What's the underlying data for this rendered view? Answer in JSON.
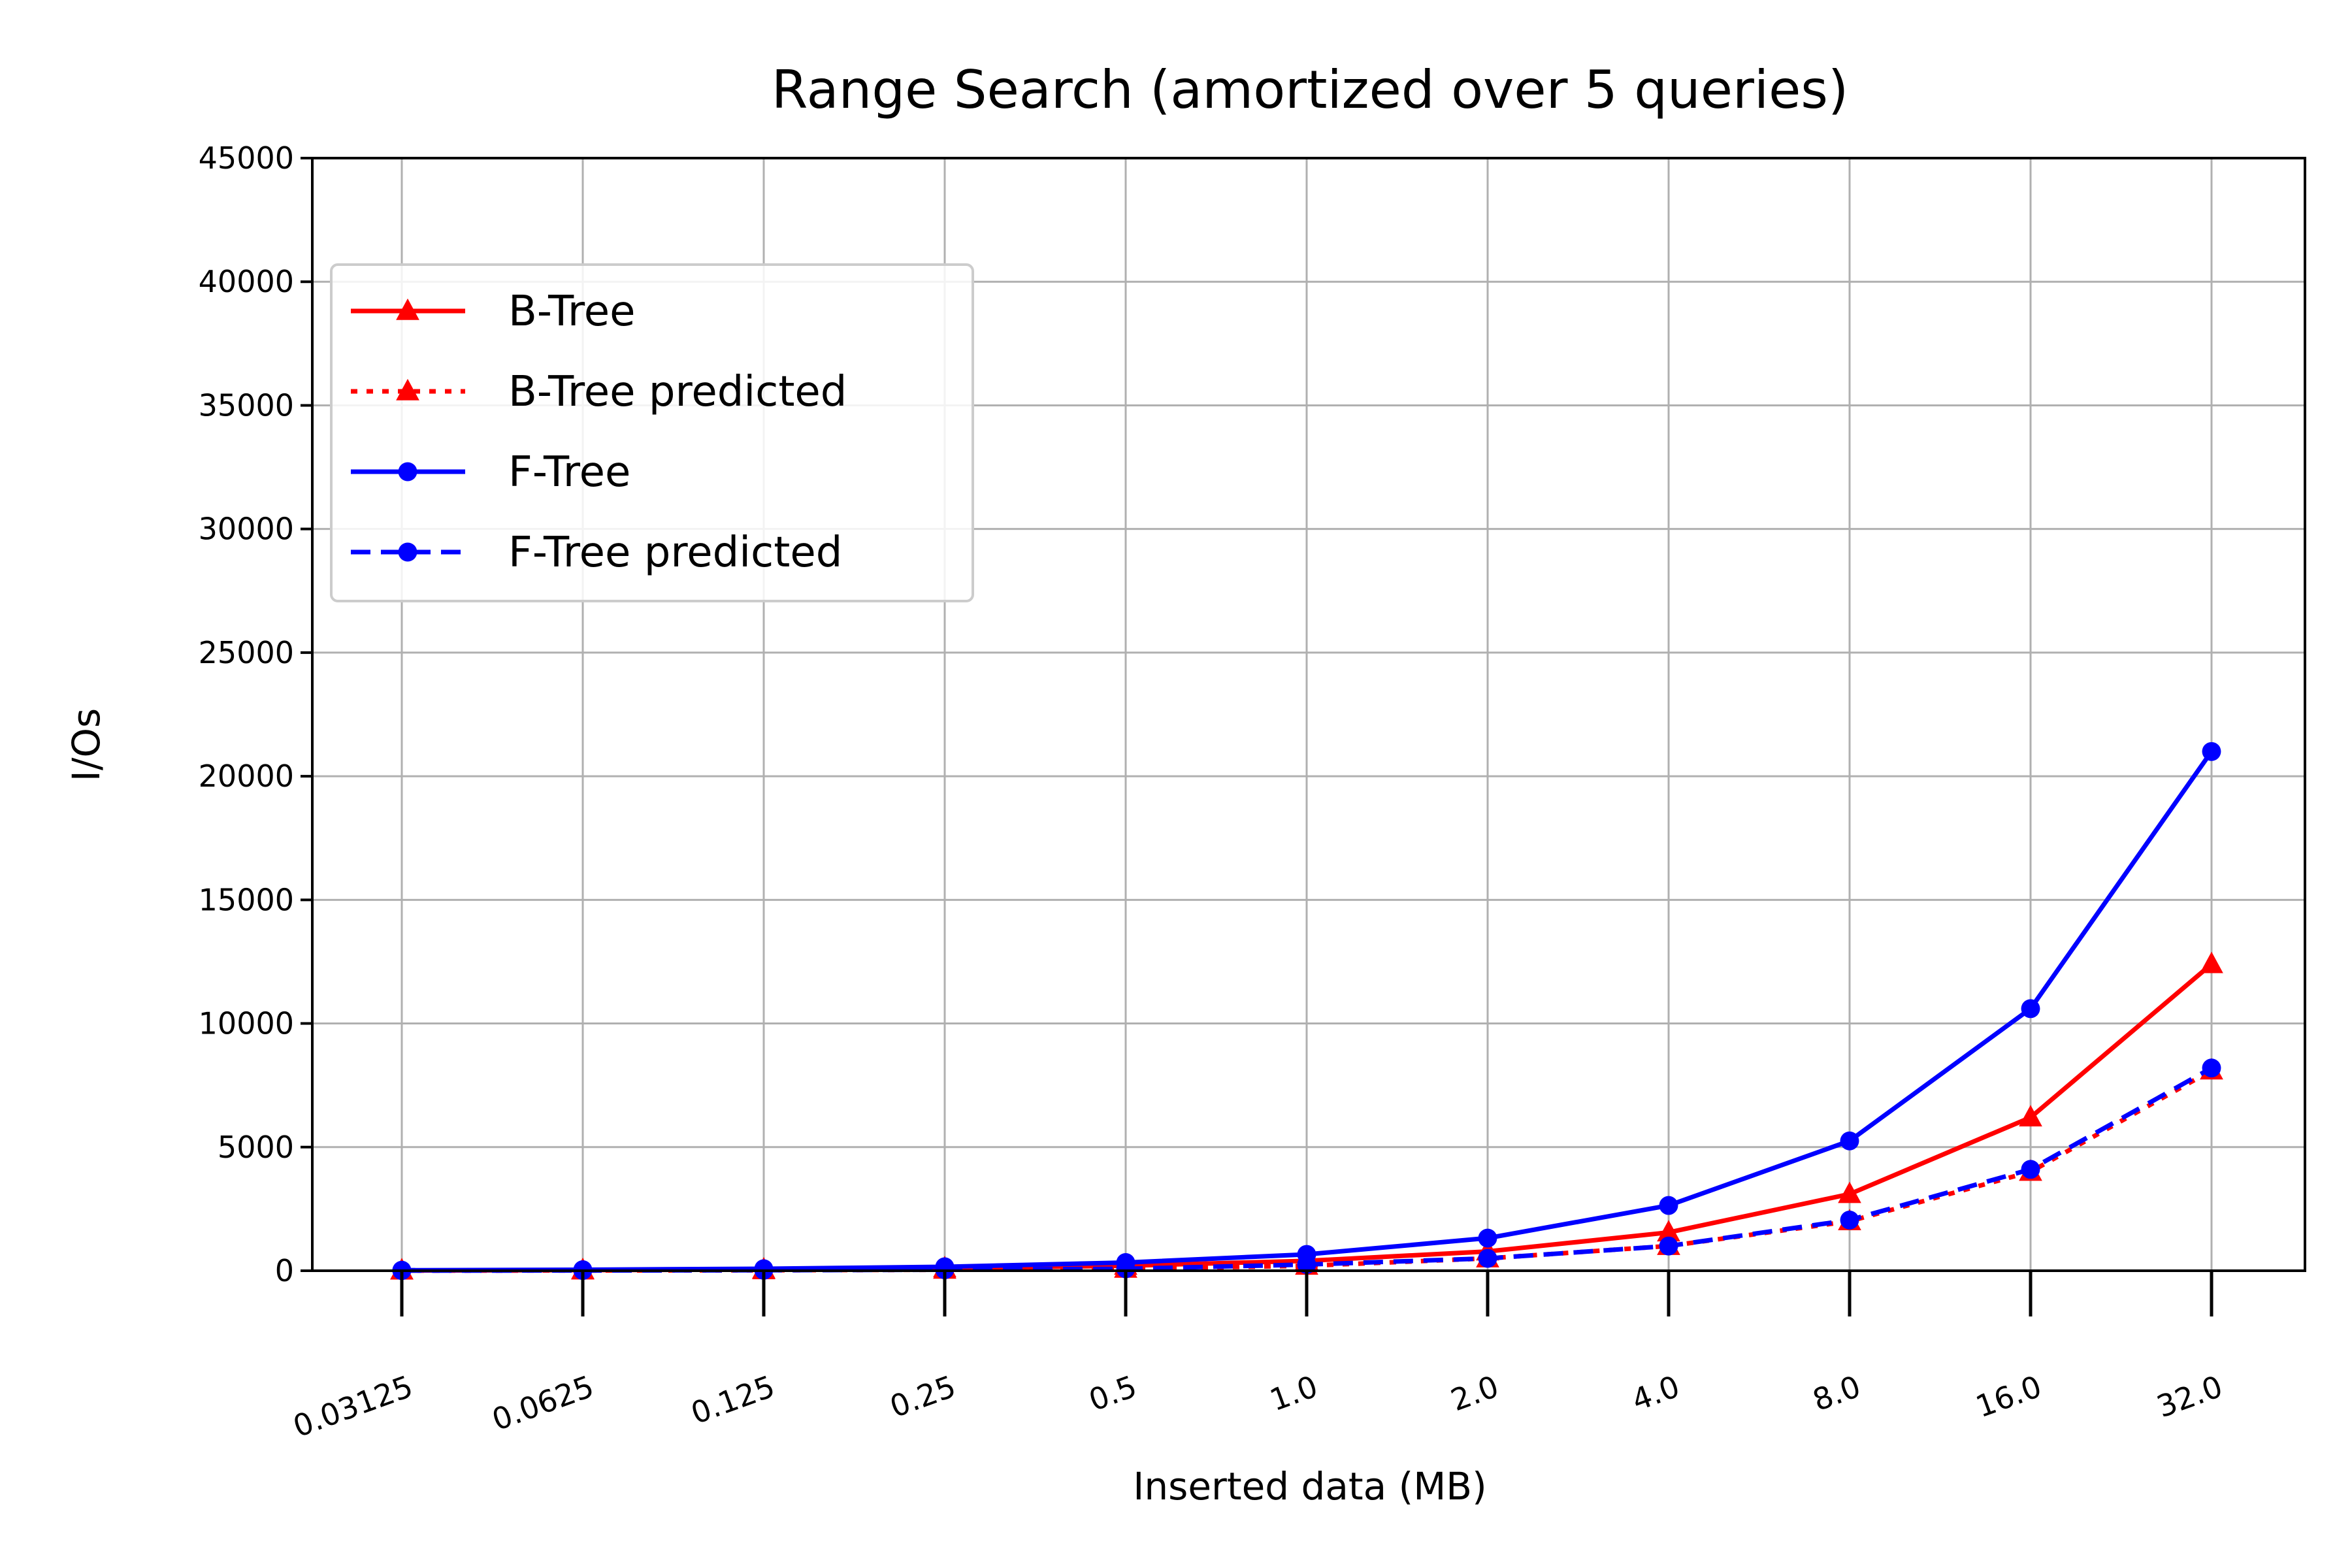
{
  "chart_data": {
    "type": "line",
    "title": "Range Search (amortized over 5 queries)",
    "xlabel": "Inserted data (MB)",
    "ylabel": "I/Os",
    "categories": [
      "0.03125",
      "0.0625",
      "0.125",
      "0.25",
      "0.5",
      "1.0",
      "2.0",
      "4.0",
      "8.0",
      "16.0",
      "32.0"
    ],
    "ylim": [
      0,
      45000
    ],
    "yticks": [
      0,
      5000,
      10000,
      15000,
      20000,
      25000,
      30000,
      35000,
      40000,
      45000
    ],
    "ytick_labels": [
      "0",
      "5000",
      "10000",
      "15000",
      "20000",
      "25000",
      "30000",
      "35000",
      "40000",
      "45000"
    ],
    "grid": true,
    "legend_position": "upper-left",
    "series": [
      {
        "name": "B-Tree",
        "color": "#ff0000",
        "line_style": "solid",
        "marker": "triangle",
        "values": [
          10,
          25,
          50,
          100,
          200,
          400,
          780,
          1550,
          3100,
          6200,
          12400
        ]
      },
      {
        "name": "B-Tree predicted",
        "color": "#ff0000",
        "line_style": "dotted",
        "marker": "triangle",
        "values": [
          5,
          10,
          20,
          40,
          80,
          200,
          500,
          1000,
          2000,
          4000,
          8100
        ]
      },
      {
        "name": "F-Tree",
        "color": "#0000ff",
        "line_style": "solid",
        "marker": "circle",
        "values": [
          20,
          40,
          80,
          160,
          330,
          660,
          1320,
          2640,
          5250,
          10600,
          21000
        ]
      },
      {
        "name": "F-Tree predicted",
        "color": "#0000ff",
        "line_style": "dashed",
        "marker": "circle",
        "values": [
          5,
          10,
          20,
          40,
          80,
          250,
          500,
          1000,
          2050,
          4100,
          8200
        ]
      }
    ]
  }
}
